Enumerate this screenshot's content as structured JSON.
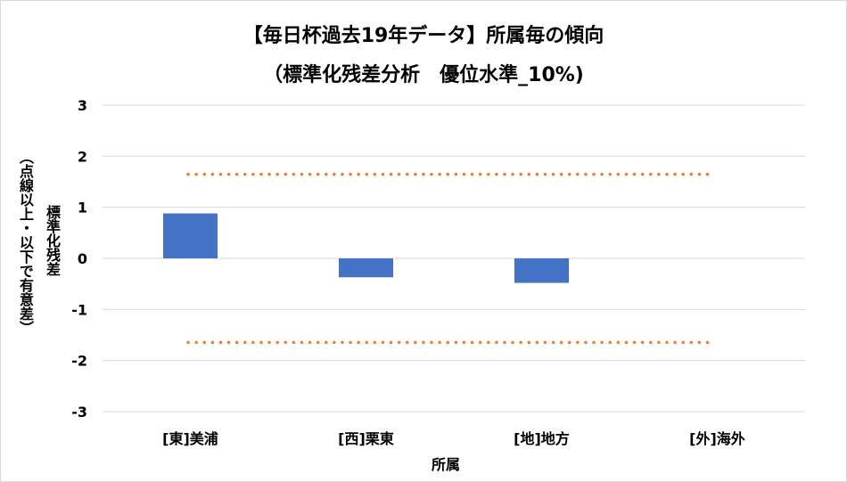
{
  "chart_data": {
    "type": "bar",
    "title_line1": "【毎日杯過去19年データ】所属毎の傾向",
    "title_line2": "（標準化残差分析　優位水準_10%)",
    "xlabel": "所属",
    "ylabel_main": "標準化残差",
    "ylabel_note": "（点線以上・以下で有意差）",
    "categories": [
      "[東]美浦",
      "[西]栗東",
      "[地]地方",
      "[外]海外"
    ],
    "values": [
      0.88,
      -0.37,
      -0.48,
      0
    ],
    "ylim": [
      -3,
      3
    ],
    "yticks": [
      3,
      2,
      1,
      0,
      -1,
      -2,
      -3
    ],
    "threshold_lines": [
      1.645,
      -1.645
    ],
    "grid": true,
    "colors": {
      "bar": "#4472c4",
      "threshold": "#ed7d31",
      "grid": "#d9d9d9"
    }
  }
}
